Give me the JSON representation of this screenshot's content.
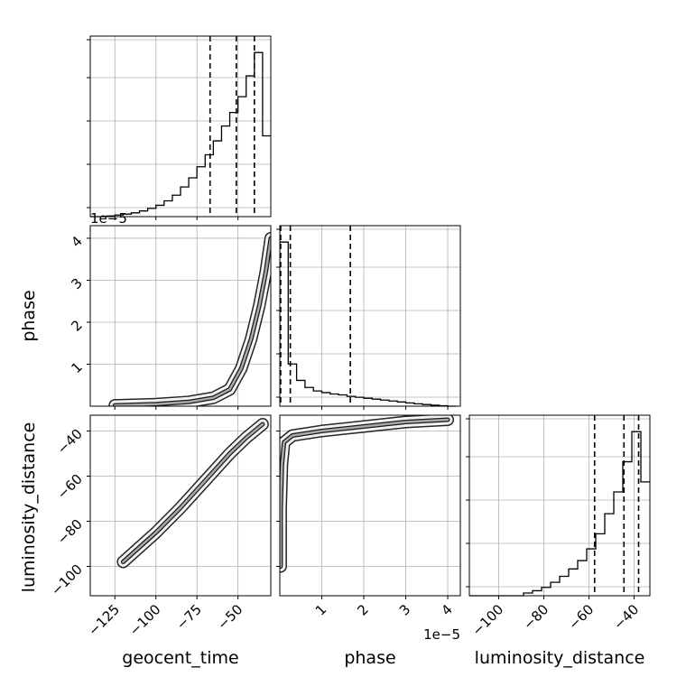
{
  "chart_data": {
    "type": "corner",
    "parameters": [
      "geocent_time",
      "phase",
      "luminosity_distance"
    ],
    "axes": {
      "geocent_time": {
        "label": "geocent_time",
        "range": [
          -140,
          -30
        ],
        "ticks": [
          -125,
          -100,
          -75,
          -50
        ],
        "tick_labels": [
          "−125",
          "−100",
          "−75",
          "−50"
        ]
      },
      "phase": {
        "label": "phase",
        "range": [
          0,
          4.3
        ],
        "ticks_x": [
          1,
          2,
          3,
          4
        ],
        "tick_labels_x": [
          "1",
          "2",
          "3",
          "4"
        ],
        "ticks_y": [
          1,
          2,
          3,
          4
        ],
        "tick_labels_y": [
          "1",
          "2",
          "3",
          "4"
        ],
        "offset_label": "1e−5"
      },
      "luminosity_distance": {
        "label": "luminosity_distance",
        "range": [
          -113,
          -33
        ],
        "ticks_x": [
          -100,
          -80,
          -60,
          -40
        ],
        "tick_labels_x": [
          "−100",
          "−80",
          "−60",
          "−40"
        ],
        "ticks_y": [
          -100,
          -80,
          -60,
          -40
        ],
        "tick_labels_y": [
          "−100",
          "−80",
          "−60",
          "−40"
        ]
      }
    },
    "histograms": {
      "geocent_time": {
        "bin_edges": [
          -140,
          -135,
          -130,
          -125,
          -120,
          -115,
          -110,
          -105,
          -100,
          -95,
          -90,
          -85,
          -80,
          -75,
          -70,
          -65,
          -60,
          -55,
          -50,
          -45,
          -40,
          -35,
          -30
        ],
        "counts": [
          0,
          0,
          0.2,
          0.5,
          0.8,
          1.2,
          1.8,
          2.6,
          3.6,
          5,
          6.8,
          9.4,
          12.3,
          15.8,
          19.6,
          24,
          28.7,
          33,
          38,
          44.6,
          52,
          25.6
        ],
        "quantiles": [
          -67,
          -51,
          -40
        ]
      },
      "phase": {
        "bin_edges": [
          0,
          0.2,
          0.4,
          0.6,
          0.8,
          1.0,
          1.2,
          1.4,
          1.6,
          1.8,
          2.0,
          2.2,
          2.4,
          2.6,
          2.8,
          3.0,
          3.2,
          3.4,
          3.6,
          3.8,
          4.0,
          4.2
        ],
        "counts": [
          70,
          18,
          11,
          8,
          6.5,
          5.8,
          5.2,
          4.8,
          4.2,
          3.8,
          3.4,
          3,
          2.6,
          2.2,
          1.8,
          1.4,
          1,
          0.7,
          0.4,
          0.2,
          0
        ],
        "quantiles": [
          0.02,
          0.25,
          1.68
        ]
      },
      "luminosity_distance": {
        "bin_edges": [
          -113,
          -109,
          -105,
          -101,
          -97,
          -93,
          -89,
          -85,
          -81,
          -77,
          -73,
          -69,
          -65,
          -61,
          -57,
          -53,
          -49,
          -45,
          -41,
          -37,
          -33
        ],
        "counts": [
          0,
          0,
          0,
          0,
          0,
          0,
          0.8,
          1.5,
          2.5,
          4,
          5.8,
          8,
          10.5,
          14,
          18.5,
          24.5,
          31,
          40,
          49,
          34
        ],
        "quantiles": [
          -57.5,
          -44.5,
          -38
        ]
      }
    },
    "pairs": [
      {
        "x": "geocent_time",
        "y": "phase",
        "ridge": [
          [
            -125,
            0.02
          ],
          [
            -100,
            0.05
          ],
          [
            -80,
            0.1
          ],
          [
            -65,
            0.2
          ],
          [
            -55,
            0.4
          ],
          [
            -48,
            0.9
          ],
          [
            -42,
            1.6
          ],
          [
            -37,
            2.4
          ],
          [
            -33,
            3.2
          ],
          [
            -30,
            4.0
          ]
        ]
      },
      {
        "x": "geocent_time",
        "y": "luminosity_distance",
        "ridge": [
          [
            -120,
            -98
          ],
          [
            -100,
            -85
          ],
          [
            -85,
            -74
          ],
          [
            -75,
            -66
          ],
          [
            -65,
            -58
          ],
          [
            -55,
            -50
          ],
          [
            -45,
            -43
          ],
          [
            -35,
            -37
          ]
        ]
      },
      {
        "x": "phase",
        "y": "luminosity_distance",
        "ridge": [
          [
            0.02,
            -100
          ],
          [
            0.02,
            -75
          ],
          [
            0.05,
            -55
          ],
          [
            0.1,
            -45
          ],
          [
            0.3,
            -42
          ],
          [
            1.0,
            -40
          ],
          [
            2.0,
            -38
          ],
          [
            3.0,
            -36
          ],
          [
            4.0,
            -35
          ]
        ]
      }
    ]
  }
}
